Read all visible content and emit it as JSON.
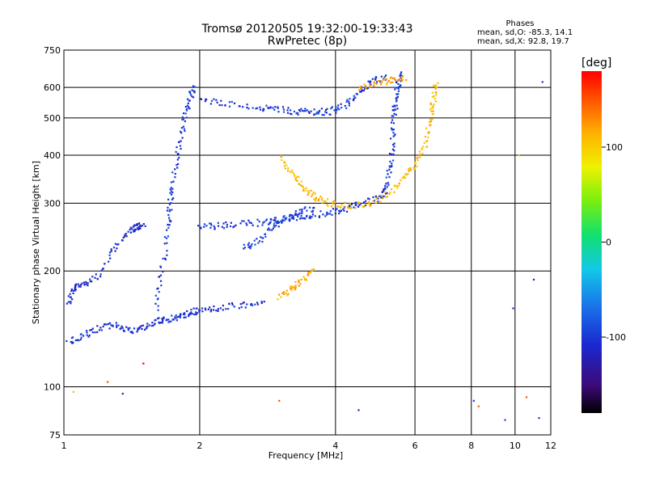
{
  "chart_data": {
    "type": "scatter",
    "title": "Tromsø 20120505 19:32:00-19:33:43",
    "subtitle": "RwPretec (8p)",
    "xlabel": "Frequency [MHz]",
    "ylabel": "Stationary phase Virtual Height [km]",
    "x_scale": "log",
    "y_scale": "log",
    "xlim": [
      1,
      12
    ],
    "ylim": [
      75,
      750
    ],
    "x_ticks": [
      "1",
      "2",
      "4",
      "6",
      "8",
      "10",
      "12"
    ],
    "x_tick_values": [
      1,
      2,
      4,
      6,
      8,
      10,
      12
    ],
    "y_ticks": [
      "75",
      "100",
      "200",
      "300",
      "400",
      "500",
      "600",
      "750"
    ],
    "y_tick_values": [
      75,
      100,
      200,
      300,
      400,
      500,
      600,
      750
    ],
    "grid": true,
    "phases_box": {
      "title": "Phases",
      "line1": "mean, sd,O: -85.3, 14.1",
      "line2": "mean, sd,X:  92.8, 19.7"
    },
    "colorbar": {
      "label": "[deg]",
      "ticks": [
        "100",
        "0",
        "-100"
      ],
      "tick_values": [
        100,
        0,
        -100
      ],
      "range": [
        -180,
        180
      ]
    },
    "traces": [
      {
        "role": "O",
        "phase": -110,
        "points": [
          [
            1.02,
            165
          ],
          [
            1.05,
            180
          ],
          [
            1.1,
            185
          ],
          [
            1.2,
            195
          ],
          [
            1.3,
            230
          ],
          [
            1.4,
            255
          ],
          [
            1.45,
            260
          ],
          [
            1.5,
            265
          ]
        ]
      },
      {
        "role": "O",
        "phase": -105,
        "points": [
          [
            1.02,
            130
          ],
          [
            1.1,
            135
          ],
          [
            1.2,
            142
          ],
          [
            1.3,
            145
          ],
          [
            1.4,
            140
          ],
          [
            1.5,
            142
          ],
          [
            1.6,
            148
          ],
          [
            1.7,
            150
          ],
          [
            1.8,
            152
          ],
          [
            1.9,
            155
          ],
          [
            2.0,
            158
          ],
          [
            2.2,
            160
          ],
          [
            2.5,
            163
          ],
          [
            2.8,
            165
          ]
        ]
      },
      {
        "role": "O",
        "phase": -100,
        "points": [
          [
            1.6,
            160
          ],
          [
            1.65,
            200
          ],
          [
            1.7,
            260
          ],
          [
            1.72,
            300
          ],
          [
            1.75,
            350
          ],
          [
            1.8,
            420
          ],
          [
            1.85,
            500
          ],
          [
            1.9,
            560
          ],
          [
            1.95,
            600
          ]
        ]
      },
      {
        "role": "O",
        "phase": -100,
        "points": [
          [
            2.0,
            260
          ],
          [
            2.2,
            262
          ],
          [
            2.5,
            265
          ],
          [
            2.8,
            268
          ],
          [
            3.0,
            272
          ],
          [
            3.3,
            276
          ],
          [
            3.6,
            280
          ],
          [
            4.0,
            285
          ],
          [
            4.3,
            292
          ],
          [
            4.6,
            300
          ],
          [
            5.0,
            310
          ],
          [
            5.2,
            330
          ],
          [
            5.3,
            380
          ],
          [
            5.35,
            440
          ],
          [
            5.4,
            510
          ],
          [
            5.45,
            560
          ],
          [
            5.5,
            610
          ],
          [
            5.6,
            650
          ]
        ]
      },
      {
        "role": "O",
        "phase": -100,
        "points": [
          [
            2.0,
            560
          ],
          [
            2.3,
            545
          ],
          [
            2.7,
            530
          ],
          [
            3.0,
            525
          ],
          [
            3.3,
            520
          ],
          [
            3.6,
            518
          ],
          [
            3.9,
            519
          ],
          [
            4.2,
            540
          ],
          [
            4.5,
            580
          ],
          [
            4.8,
            620
          ],
          [
            5.2,
            640
          ]
        ]
      },
      {
        "role": "O",
        "phase": -95,
        "points": [
          [
            2.5,
            230
          ],
          [
            2.7,
            240
          ],
          [
            2.9,
            260
          ],
          [
            3.1,
            275
          ],
          [
            3.3,
            285
          ],
          [
            3.6,
            292
          ]
        ]
      },
      {
        "role": "X",
        "phase": 110,
        "points": [
          [
            3.0,
            400
          ],
          [
            3.2,
            360
          ],
          [
            3.4,
            330
          ],
          [
            3.6,
            310
          ],
          [
            3.9,
            300
          ],
          [
            4.3,
            296
          ],
          [
            4.8,
            300
          ],
          [
            5.3,
            320
          ],
          [
            5.7,
            350
          ],
          [
            6.0,
            380
          ],
          [
            6.3,
            420
          ],
          [
            6.5,
            500
          ],
          [
            6.6,
            560
          ],
          [
            6.7,
            620
          ]
        ]
      },
      {
        "role": "X",
        "phase": 115,
        "points": [
          [
            3.0,
            170
          ],
          [
            3.2,
            180
          ],
          [
            3.4,
            190
          ],
          [
            3.6,
            200
          ]
        ]
      },
      {
        "role": "X",
        "phase": 120,
        "points": [
          [
            4.5,
            600
          ],
          [
            5.0,
            620
          ],
          [
            5.4,
            630
          ],
          [
            5.7,
            630
          ]
        ]
      }
    ],
    "isolated_points": [
      {
        "freq": 1.05,
        "height": 97,
        "phase": 110
      },
      {
        "freq": 1.25,
        "height": 103,
        "phase": 150
      },
      {
        "freq": 1.35,
        "height": 96,
        "phase": -110
      },
      {
        "freq": 1.5,
        "height": 115,
        "phase": 180
      },
      {
        "freq": 3.0,
        "height": 92,
        "phase": 150
      },
      {
        "freq": 4.5,
        "height": 87,
        "phase": -110
      },
      {
        "freq": 8.1,
        "height": 92,
        "phase": -100
      },
      {
        "freq": 8.3,
        "height": 89,
        "phase": 150
      },
      {
        "freq": 9.5,
        "height": 82,
        "phase": -90
      },
      {
        "freq": 10.6,
        "height": 94,
        "phase": 150
      },
      {
        "freq": 11.3,
        "height": 83,
        "phase": -100
      },
      {
        "freq": 11.5,
        "height": 620,
        "phase": -100
      },
      {
        "freq": 10.2,
        "height": 400,
        "phase": 110
      },
      {
        "freq": 9.9,
        "height": 160,
        "phase": -110
      },
      {
        "freq": 11.0,
        "height": 190,
        "phase": -110
      }
    ]
  }
}
